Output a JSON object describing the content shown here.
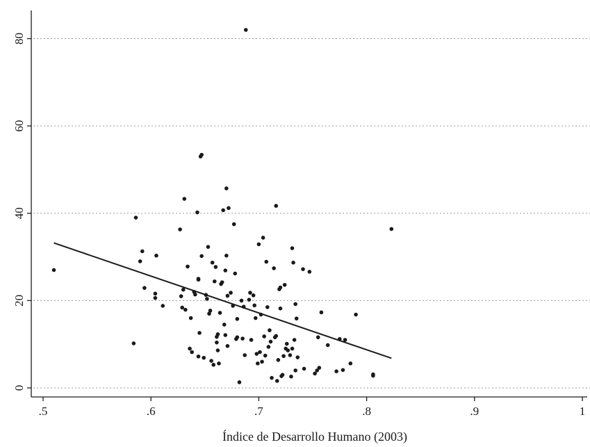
{
  "chart_data": {
    "type": "scatter",
    "title": "",
    "xlabel": "Índice de Desarrollo Humano (2003)",
    "ylabel": "",
    "xlim": [
      0.5,
      1.0
    ],
    "ylim": [
      0,
      82
    ],
    "xticks": [
      0.5,
      0.6,
      0.7,
      0.8,
      0.9,
      1.0
    ],
    "xtick_labels": [
      ".5",
      ".6",
      ".7",
      ".8",
      ".9",
      "1"
    ],
    "yticks": [
      0,
      20,
      40,
      60,
      80
    ],
    "ytick_labels": [
      "0",
      "20",
      "40",
      "60",
      "80"
    ],
    "grid": "horizontal dotted",
    "colors": {
      "points": "#1a1a1a",
      "fit_line": "#1a1a1a",
      "grid": "#9a9a9a"
    },
    "fit_line": {
      "x": [
        0.51,
        0.823
      ],
      "y": [
        33.2,
        6.8
      ]
    },
    "points": [
      [
        0.51,
        27.0
      ],
      [
        0.584,
        10.2
      ],
      [
        0.586,
        39.0
      ],
      [
        0.59,
        29.0
      ],
      [
        0.592,
        31.3
      ],
      [
        0.594,
        22.9
      ],
      [
        0.604,
        21.6
      ],
      [
        0.605,
        30.3
      ],
      [
        0.604,
        20.6
      ],
      [
        0.611,
        18.8
      ],
      [
        0.627,
        36.3
      ],
      [
        0.628,
        21.0
      ],
      [
        0.629,
        18.4
      ],
      [
        0.63,
        22.5
      ],
      [
        0.631,
        43.3
      ],
      [
        0.632,
        17.9
      ],
      [
        0.634,
        27.8
      ],
      [
        0.636,
        9.0
      ],
      [
        0.637,
        16.0
      ],
      [
        0.638,
        8.2
      ],
      [
        0.64,
        22.0
      ],
      [
        0.641,
        21.4
      ],
      [
        0.643,
        40.2
      ],
      [
        0.644,
        7.2
      ],
      [
        0.644,
        24.8
      ],
      [
        0.644,
        25.0
      ],
      [
        0.645,
        12.6
      ],
      [
        0.646,
        53.0
      ],
      [
        0.647,
        53.4
      ],
      [
        0.647,
        30.2
      ],
      [
        0.649,
        6.9
      ],
      [
        0.651,
        21.3
      ],
      [
        0.652,
        20.4
      ],
      [
        0.653,
        32.3
      ],
      [
        0.654,
        17.0
      ],
      [
        0.655,
        17.7
      ],
      [
        0.656,
        6.2
      ],
      [
        0.657,
        28.7
      ],
      [
        0.658,
        5.3
      ],
      [
        0.659,
        24.4
      ],
      [
        0.66,
        27.7
      ],
      [
        0.661,
        10.4
      ],
      [
        0.661,
        11.7
      ],
      [
        0.662,
        12.3
      ],
      [
        0.662,
        8.6
      ],
      [
        0.663,
        5.6
      ],
      [
        0.664,
        17.2
      ],
      [
        0.665,
        23.8
      ],
      [
        0.666,
        24.2
      ],
      [
        0.667,
        40.7
      ],
      [
        0.668,
        14.5
      ],
      [
        0.669,
        26.9
      ],
      [
        0.669,
        12.1
      ],
      [
        0.67,
        30.3
      ],
      [
        0.67,
        45.7
      ],
      [
        0.671,
        9.6
      ],
      [
        0.671,
        21.1
      ],
      [
        0.672,
        41.2
      ],
      [
        0.674,
        21.8
      ],
      [
        0.676,
        18.8
      ],
      [
        0.677,
        37.5
      ],
      [
        0.678,
        26.2
      ],
      [
        0.679,
        11.2
      ],
      [
        0.68,
        11.6
      ],
      [
        0.68,
        15.8
      ],
      [
        0.682,
        1.3
      ],
      [
        0.684,
        20.0
      ],
      [
        0.685,
        11.3
      ],
      [
        0.686,
        18.6
      ],
      [
        0.687,
        7.5
      ],
      [
        0.688,
        82.0
      ],
      [
        0.691,
        20.2
      ],
      [
        0.692,
        21.8
      ],
      [
        0.693,
        11.0
      ],
      [
        0.695,
        21.2
      ],
      [
        0.696,
        18.9
      ],
      [
        0.697,
        16.0
      ],
      [
        0.698,
        7.8
      ],
      [
        0.699,
        5.6
      ],
      [
        0.7,
        32.9
      ],
      [
        0.701,
        8.2
      ],
      [
        0.702,
        16.8
      ],
      [
        0.703,
        6.0
      ],
      [
        0.704,
        34.4
      ],
      [
        0.705,
        11.8
      ],
      [
        0.706,
        7.4
      ],
      [
        0.707,
        28.9
      ],
      [
        0.708,
        18.5
      ],
      [
        0.709,
        9.4
      ],
      [
        0.71,
        13.2
      ],
      [
        0.711,
        10.6
      ],
      [
        0.712,
        2.3
      ],
      [
        0.714,
        27.4
      ],
      [
        0.715,
        11.6
      ],
      [
        0.716,
        11.9
      ],
      [
        0.716,
        41.7
      ],
      [
        0.717,
        1.6
      ],
      [
        0.718,
        6.4
      ],
      [
        0.719,
        22.6
      ],
      [
        0.72,
        23.0
      ],
      [
        0.72,
        18.2
      ],
      [
        0.721,
        2.7
      ],
      [
        0.722,
        3.0
      ],
      [
        0.723,
        7.3
      ],
      [
        0.724,
        23.6
      ],
      [
        0.725,
        9.0
      ],
      [
        0.726,
        10.1
      ],
      [
        0.727,
        8.6
      ],
      [
        0.729,
        7.5
      ],
      [
        0.73,
        2.6
      ],
      [
        0.731,
        32.0
      ],
      [
        0.731,
        9.0
      ],
      [
        0.732,
        28.7
      ],
      [
        0.733,
        11.0
      ],
      [
        0.734,
        4.0
      ],
      [
        0.734,
        19.2
      ],
      [
        0.735,
        15.9
      ],
      [
        0.736,
        7.0
      ],
      [
        0.741,
        27.2
      ],
      [
        0.742,
        4.4
      ],
      [
        0.747,
        26.6
      ],
      [
        0.752,
        3.3
      ],
      [
        0.754,
        4.0
      ],
      [
        0.755,
        11.6
      ],
      [
        0.756,
        4.6
      ],
      [
        0.758,
        17.3
      ],
      [
        0.764,
        9.8
      ],
      [
        0.772,
        3.8
      ],
      [
        0.775,
        11.2
      ],
      [
        0.778,
        4.1
      ],
      [
        0.78,
        11.0
      ],
      [
        0.785,
        5.6
      ],
      [
        0.79,
        16.8
      ],
      [
        0.806,
        3.1
      ],
      [
        0.806,
        2.8
      ],
      [
        0.823,
        36.4
      ]
    ]
  }
}
